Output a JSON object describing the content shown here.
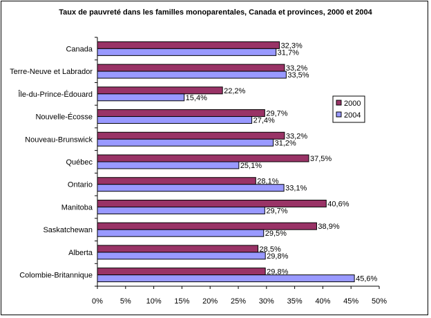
{
  "chart_data": {
    "type": "bar",
    "orientation": "horizontal",
    "title": "Taux de pauvreté dans les familles monoparentales, Canada et provinces, 2000 et 2004",
    "categories": [
      "Canada",
      "Terre-Neuve et Labrador",
      "Île-du-Prince-Édouard",
      "Nouvelle-Écosse",
      "Nouveau-Brunswick",
      "Québec",
      "Ontario",
      "Manitoba",
      "Saskatchewan",
      "Alberta",
      "Colombie-Britannique"
    ],
    "series": [
      {
        "name": "2000",
        "color": "#993366",
        "values": [
          32.3,
          33.2,
          22.2,
          29.7,
          33.2,
          37.5,
          28.1,
          40.6,
          38.9,
          28.5,
          29.8
        ]
      },
      {
        "name": "2004",
        "color": "#9999ff",
        "values": [
          31.7,
          33.5,
          15.4,
          27.4,
          31.2,
          25.1,
          33.1,
          29.7,
          29.5,
          29.8,
          45.6
        ]
      }
    ],
    "value_labels": [
      [
        "32,3%",
        "33,2%",
        "22,2%",
        "29,7%",
        "33,2%",
        "37,5%",
        "28,1%",
        "40,6%",
        "38,9%",
        "28,5%",
        "29,8%"
      ],
      [
        "31,7%",
        "33,5%",
        "15,4%",
        "27,4%",
        "31,2%",
        "25,1%",
        "33,1%",
        "29,7%",
        "29,5%",
        "29,8%",
        "45,6%"
      ]
    ],
    "xlim": [
      0,
      50
    ],
    "xticks": [
      0,
      5,
      10,
      15,
      20,
      25,
      30,
      35,
      40,
      45,
      50
    ],
    "xtick_labels": [
      "0%",
      "5%",
      "10%",
      "15%",
      "20%",
      "25%",
      "30%",
      "35%",
      "40%",
      "45%",
      "50%"
    ],
    "xlabel": "",
    "ylabel": "",
    "grid": false,
    "legend": {
      "position": "right",
      "entries": [
        "2000",
        "2004"
      ]
    }
  }
}
